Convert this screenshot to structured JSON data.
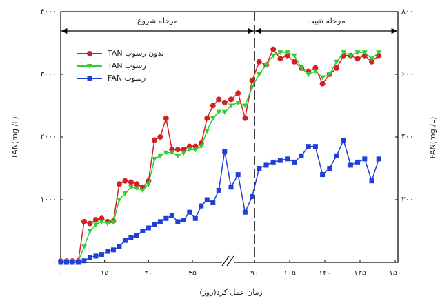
{
  "chart_data": {
    "type": "line",
    "xlabel": "زمان عمل کرد(روز)",
    "ylabel": "TAN(mg /L)",
    "y2label": "FAN(mg /L)",
    "phases": [
      "مرحله شروع",
      "مرحله تثبیت"
    ],
    "phase_boundary": 90,
    "xlim": [
      0,
      150
    ],
    "xbreak": [
      57,
      80
    ],
    "xticks": [
      {
        "value": 0,
        "label": "۰"
      },
      {
        "value": 15,
        "label": "۱۵"
      },
      {
        "value": 30,
        "label": "۳۰"
      },
      {
        "value": 45,
        "label": "۴۵"
      },
      {
        "value": 90,
        "label": "۹۰"
      },
      {
        "value": 105,
        "label": "۱۰۵"
      },
      {
        "value": 120,
        "label": "۱۲۰"
      },
      {
        "value": 135,
        "label": "۱۳۵"
      },
      {
        "value": 150,
        "label": "۱۵۰"
      }
    ],
    "ylim": [
      0,
      4000
    ],
    "yticks": [
      {
        "value": 0,
        "label": "۰"
      },
      {
        "value": 1000,
        "label": "۱۰۰۰"
      },
      {
        "value": 2000,
        "label": "۲۰۰۰"
      },
      {
        "value": 3000,
        "label": "۳۰۰۰"
      },
      {
        "value": 4000,
        "label": "۴۰۰۰"
      }
    ],
    "y2lim": [
      0,
      800
    ],
    "y2ticks": [
      {
        "value": 200,
        "label": "۲۰۰"
      },
      {
        "value": 400,
        "label": "۴۰۰"
      },
      {
        "value": 600,
        "label": "۶۰۰"
      },
      {
        "value": 800,
        "label": "۸۰۰"
      }
    ],
    "x": [
      0,
      2,
      4,
      6,
      8,
      10,
      12,
      14,
      16,
      18,
      20,
      22,
      24,
      26,
      28,
      30,
      32,
      34,
      36,
      38,
      40,
      42,
      44,
      46,
      48,
      50,
      52,
      54,
      56,
      80,
      83,
      86,
      89,
      92,
      95,
      98,
      101,
      104,
      107,
      110,
      113,
      116,
      119,
      122,
      125,
      128,
      131,
      134,
      137,
      140,
      143
    ],
    "series": [
      {
        "name": "TAN بدون رسوب",
        "color": "#d42020",
        "marker": "circle",
        "values": [
          20,
          20,
          20,
          20,
          650,
          620,
          680,
          700,
          650,
          660,
          1250,
          1300,
          1280,
          1250,
          1200,
          1300,
          1950,
          2000,
          2300,
          1800,
          1800,
          1800,
          1850,
          1850,
          1900,
          2300,
          2500,
          2600,
          2550,
          2600,
          2700,
          2300,
          2900,
          3200,
          3150,
          3400,
          3250,
          3300,
          3200,
          3100,
          3050,
          3100,
          2850,
          3000,
          3100,
          3300,
          3300,
          3250,
          3300,
          3200,
          3300
        ]
      },
      {
        "name": "TAN رسوب",
        "color": "#33cc33",
        "marker": "triangle",
        "values": [
          15,
          15,
          15,
          15,
          250,
          500,
          600,
          650,
          620,
          640,
          1000,
          1100,
          1200,
          1180,
          1150,
          1250,
          1650,
          1700,
          1750,
          1750,
          1700,
          1750,
          1800,
          1800,
          1850,
          2100,
          2300,
          2400,
          2400,
          2500,
          2550,
          2500,
          2800,
          3000,
          3150,
          3300,
          3350,
          3350,
          3300,
          3100,
          3000,
          3050,
          2950,
          3000,
          3200,
          3350,
          3300,
          3350,
          3350,
          3250,
          3350
        ]
      },
      {
        "name": "FAN رسوب",
        "color": "#1f3fd6",
        "marker": "square",
        "axis": "y2",
        "values": [
          0,
          0,
          0,
          0,
          5,
          15,
          20,
          25,
          35,
          40,
          50,
          70,
          80,
          85,
          100,
          110,
          120,
          130,
          140,
          150,
          130,
          135,
          160,
          140,
          180,
          200,
          190,
          230,
          355,
          240,
          280,
          160,
          210,
          300,
          310,
          320,
          325,
          330,
          320,
          340,
          370,
          370,
          280,
          300,
          340,
          390,
          310,
          320,
          330,
          260,
          330
        ]
      }
    ]
  }
}
